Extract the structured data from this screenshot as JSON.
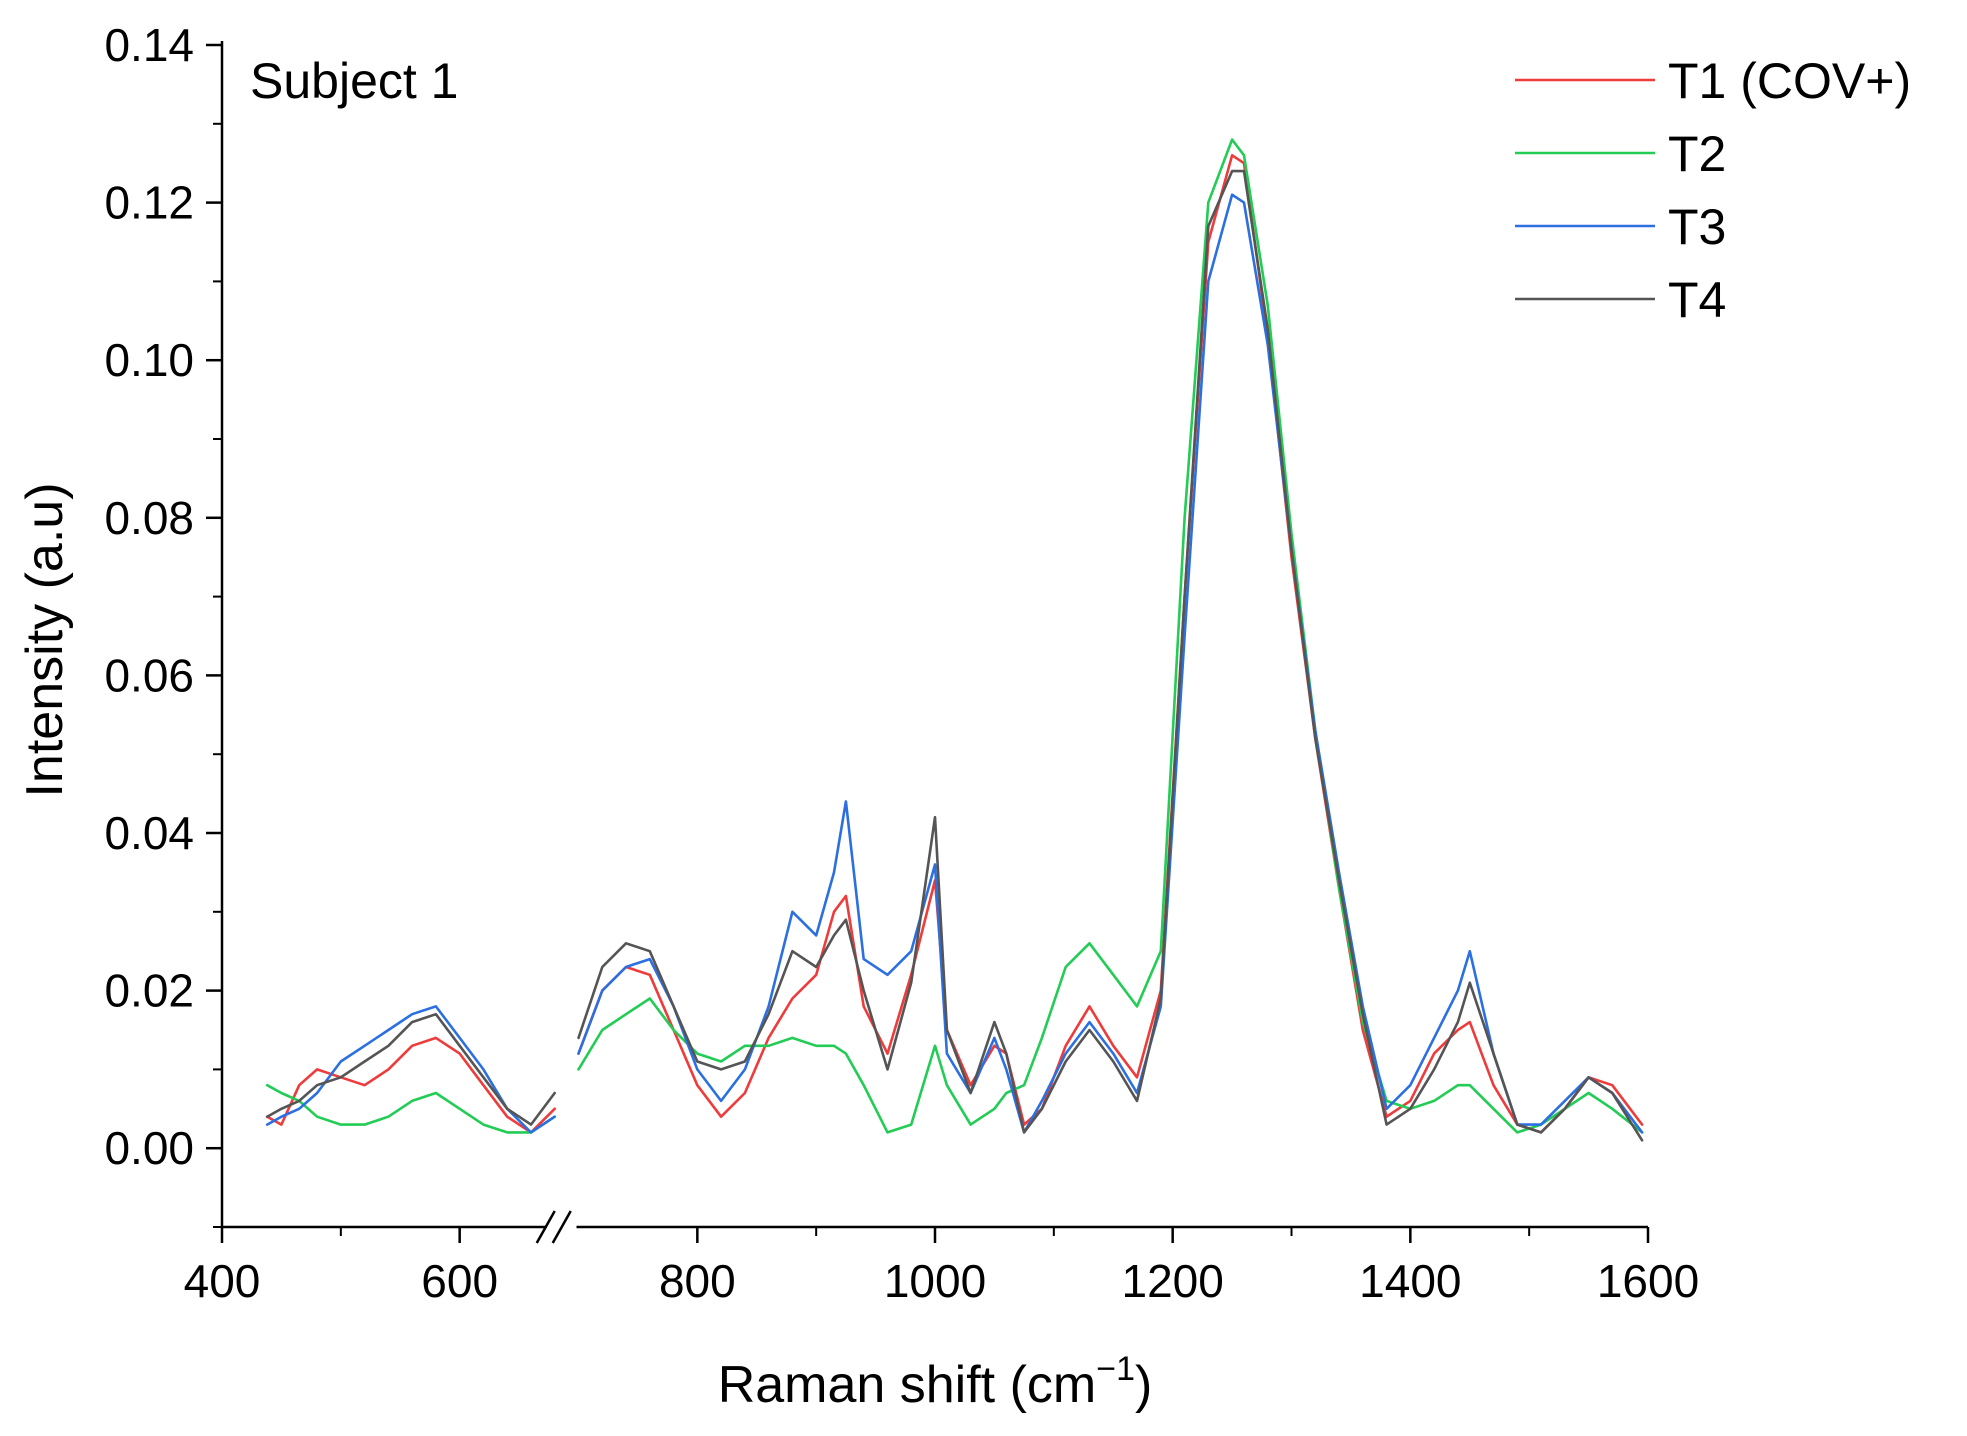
{
  "chart_data": {
    "type": "line",
    "title": "",
    "panel_label": "Subject 1",
    "xlabel": "Raman shift (cm",
    "xlabel_sup": "−1",
    "xlabel_close": ")",
    "ylabel": "Intensity (a.u)",
    "xlim": [
      400,
      1600
    ],
    "ylim": [
      -0.01,
      0.14
    ],
    "x_break": [
      680,
      700
    ],
    "grid": false,
    "legend_position": "top-right",
    "x_ticks": [
      {
        "value": 400,
        "label": "400"
      },
      {
        "value": 600,
        "label": "600"
      },
      {
        "value": 800,
        "label": "800"
      },
      {
        "value": 1000,
        "label": "1000"
      },
      {
        "value": 1200,
        "label": "1200"
      },
      {
        "value": 1400,
        "label": "1400"
      },
      {
        "value": 1600,
        "label": "1600"
      }
    ],
    "y_ticks": [
      {
        "value": 0.0,
        "label": "0.00"
      },
      {
        "value": 0.02,
        "label": "0.02"
      },
      {
        "value": 0.04,
        "label": "0.04"
      },
      {
        "value": 0.06,
        "label": "0.06"
      },
      {
        "value": 0.08,
        "label": "0.08"
      },
      {
        "value": 0.1,
        "label": "0.10"
      },
      {
        "value": 0.12,
        "label": "0.12"
      },
      {
        "value": 0.14,
        "label": "0.14"
      }
    ],
    "series": [
      {
        "name": "T1 (COV+)",
        "color": "#ee3b3b",
        "x": [
          438,
          450,
          465,
          480,
          500,
          520,
          540,
          560,
          580,
          600,
          620,
          640,
          660,
          680,
          700,
          720,
          740,
          760,
          780,
          800,
          820,
          840,
          860,
          880,
          900,
          915,
          925,
          940,
          960,
          980,
          1000,
          1010,
          1030,
          1050,
          1060,
          1075,
          1090,
          1110,
          1130,
          1150,
          1170,
          1190,
          1210,
          1230,
          1250,
          1260,
          1280,
          1300,
          1320,
          1340,
          1360,
          1380,
          1400,
          1420,
          1440,
          1450,
          1470,
          1490,
          1510,
          1530,
          1550,
          1570,
          1595
        ],
        "y": [
          0.004,
          0.003,
          0.008,
          0.01,
          0.009,
          0.008,
          0.01,
          0.013,
          0.014,
          0.012,
          0.008,
          0.004,
          0.002,
          0.005,
          0.012,
          0.02,
          0.023,
          0.022,
          0.015,
          0.008,
          0.004,
          0.007,
          0.014,
          0.019,
          0.022,
          0.03,
          0.032,
          0.018,
          0.012,
          0.022,
          0.034,
          0.015,
          0.008,
          0.013,
          0.012,
          0.003,
          0.005,
          0.013,
          0.018,
          0.013,
          0.009,
          0.02,
          0.07,
          0.115,
          0.126,
          0.125,
          0.103,
          0.075,
          0.052,
          0.033,
          0.015,
          0.004,
          0.006,
          0.012,
          0.015,
          0.016,
          0.008,
          0.003,
          0.002,
          0.005,
          0.009,
          0.008,
          0.003
        ]
      },
      {
        "name": "T2",
        "color": "#22cc55",
        "x": [
          438,
          450,
          465,
          480,
          500,
          520,
          540,
          560,
          580,
          600,
          620,
          640,
          660,
          680,
          700,
          720,
          740,
          760,
          780,
          800,
          820,
          840,
          860,
          880,
          900,
          915,
          925,
          940,
          960,
          980,
          1000,
          1010,
          1030,
          1050,
          1060,
          1075,
          1090,
          1110,
          1130,
          1150,
          1170,
          1190,
          1210,
          1230,
          1250,
          1260,
          1280,
          1300,
          1320,
          1340,
          1360,
          1380,
          1400,
          1420,
          1440,
          1450,
          1470,
          1490,
          1510,
          1530,
          1550,
          1570,
          1595
        ],
        "y": [
          0.008,
          0.007,
          0.006,
          0.004,
          0.003,
          0.003,
          0.004,
          0.006,
          0.007,
          0.005,
          0.003,
          0.002,
          0.002,
          0.004,
          0.01,
          0.015,
          0.017,
          0.019,
          0.015,
          0.012,
          0.011,
          0.013,
          0.013,
          0.014,
          0.013,
          0.013,
          0.012,
          0.008,
          0.002,
          0.003,
          0.013,
          0.008,
          0.003,
          0.005,
          0.007,
          0.008,
          0.014,
          0.023,
          0.026,
          0.022,
          0.018,
          0.025,
          0.08,
          0.12,
          0.128,
          0.126,
          0.107,
          0.078,
          0.053,
          0.033,
          0.016,
          0.006,
          0.005,
          0.006,
          0.008,
          0.008,
          0.005,
          0.002,
          0.003,
          0.005,
          0.007,
          0.005,
          0.002
        ]
      },
      {
        "name": "T3",
        "color": "#2b6fe0",
        "x": [
          438,
          450,
          465,
          480,
          500,
          520,
          540,
          560,
          580,
          600,
          620,
          640,
          660,
          680,
          700,
          720,
          740,
          760,
          780,
          800,
          820,
          840,
          860,
          880,
          900,
          915,
          925,
          940,
          960,
          980,
          1000,
          1010,
          1030,
          1050,
          1060,
          1075,
          1090,
          1110,
          1130,
          1150,
          1170,
          1190,
          1210,
          1230,
          1250,
          1260,
          1280,
          1300,
          1320,
          1340,
          1360,
          1380,
          1400,
          1420,
          1440,
          1450,
          1470,
          1490,
          1510,
          1530,
          1550,
          1570,
          1595
        ],
        "y": [
          0.003,
          0.004,
          0.005,
          0.007,
          0.011,
          0.013,
          0.015,
          0.017,
          0.018,
          0.014,
          0.01,
          0.005,
          0.002,
          0.004,
          0.012,
          0.02,
          0.023,
          0.024,
          0.018,
          0.01,
          0.006,
          0.01,
          0.018,
          0.03,
          0.027,
          0.035,
          0.044,
          0.024,
          0.022,
          0.025,
          0.036,
          0.012,
          0.007,
          0.014,
          0.01,
          0.002,
          0.006,
          0.012,
          0.016,
          0.012,
          0.007,
          0.018,
          0.065,
          0.11,
          0.121,
          0.12,
          0.102,
          0.076,
          0.053,
          0.035,
          0.018,
          0.005,
          0.008,
          0.014,
          0.02,
          0.025,
          0.012,
          0.003,
          0.003,
          0.006,
          0.009,
          0.007,
          0.002
        ]
      },
      {
        "name": "T4",
        "color": "#555555",
        "x": [
          438,
          450,
          465,
          480,
          500,
          520,
          540,
          560,
          580,
          600,
          620,
          640,
          660,
          680,
          700,
          720,
          740,
          760,
          780,
          800,
          820,
          840,
          860,
          880,
          900,
          915,
          925,
          940,
          960,
          980,
          1000,
          1010,
          1030,
          1050,
          1060,
          1075,
          1090,
          1110,
          1130,
          1150,
          1170,
          1190,
          1210,
          1230,
          1250,
          1260,
          1280,
          1300,
          1320,
          1340,
          1360,
          1380,
          1400,
          1420,
          1440,
          1450,
          1470,
          1490,
          1510,
          1530,
          1550,
          1570,
          1595
        ],
        "y": [
          0.004,
          0.005,
          0.006,
          0.008,
          0.009,
          0.011,
          0.013,
          0.016,
          0.017,
          0.013,
          0.009,
          0.005,
          0.003,
          0.007,
          0.014,
          0.023,
          0.026,
          0.025,
          0.018,
          0.011,
          0.01,
          0.011,
          0.017,
          0.025,
          0.023,
          0.027,
          0.029,
          0.02,
          0.01,
          0.021,
          0.042,
          0.015,
          0.007,
          0.016,
          0.012,
          0.002,
          0.005,
          0.011,
          0.015,
          0.011,
          0.006,
          0.019,
          0.07,
          0.117,
          0.124,
          0.124,
          0.104,
          0.076,
          0.052,
          0.034,
          0.017,
          0.003,
          0.005,
          0.01,
          0.016,
          0.021,
          0.012,
          0.003,
          0.002,
          0.005,
          0.009,
          0.007,
          0.001
        ]
      }
    ]
  }
}
